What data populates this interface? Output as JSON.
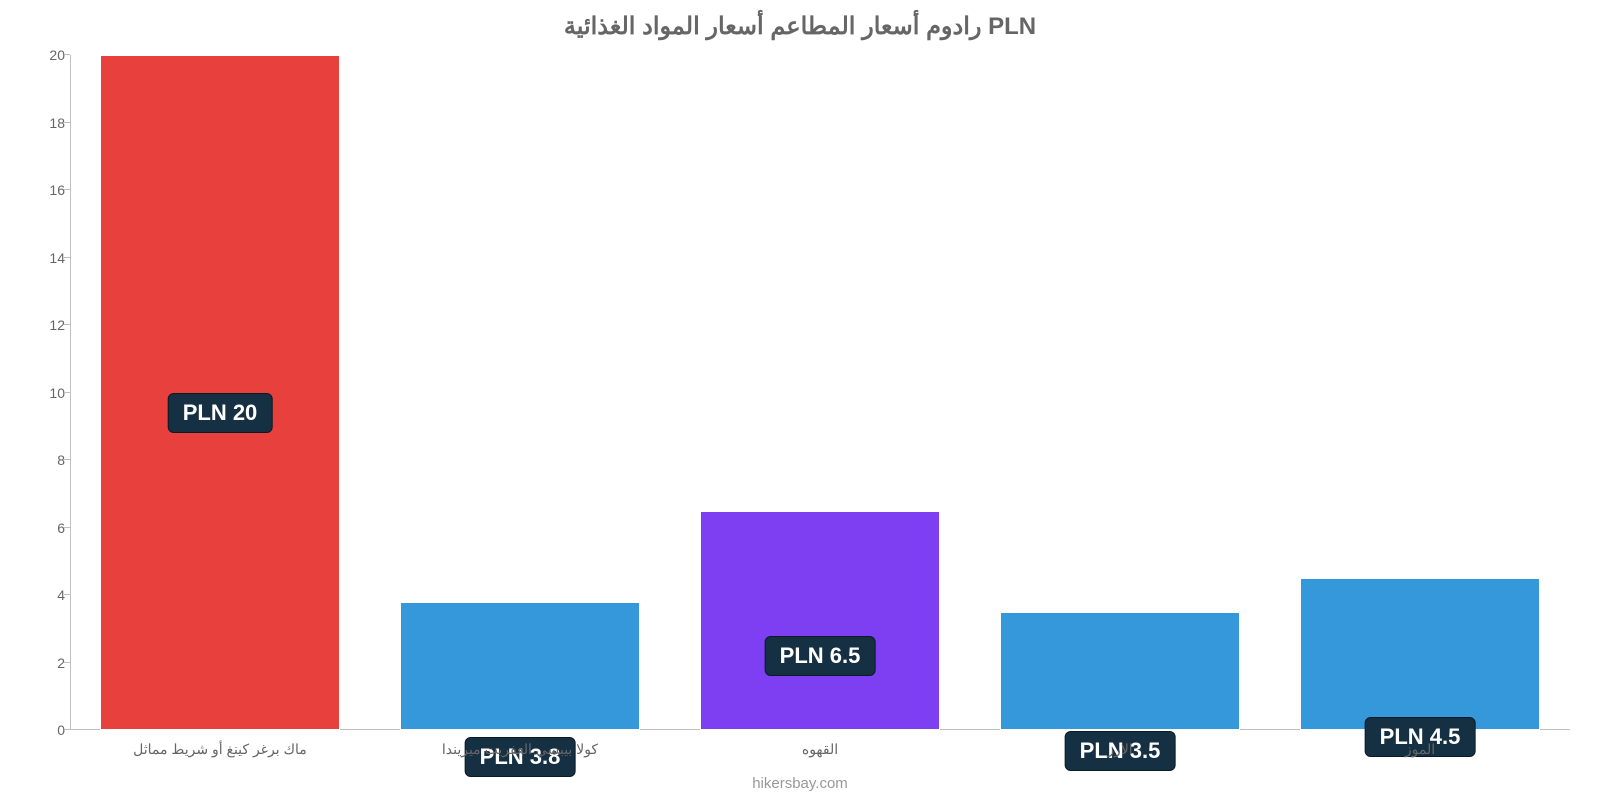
{
  "chart": {
    "type": "bar",
    "title": "رادوم أسعار المطاعم أسعار المواد الغذائية PLN",
    "source": "hikersbay.com",
    "background_color": "#ffffff",
    "title_color": "#666666",
    "axis_label_color": "#666666",
    "grid_color": "#c0c0c0",
    "ylim": [
      0,
      20
    ],
    "yticks": [
      0,
      2,
      4,
      6,
      8,
      10,
      12,
      14,
      16,
      18,
      20
    ],
    "label_box_bg": "#163043",
    "label_box_text": "#ffffff",
    "categories": [
      "ماك برغر كينغ أو شريط مماثل",
      "كولا بيبسي العفريت ميريندا",
      "القهوه",
      "الارز",
      "الموز"
    ],
    "values": [
      20,
      3.8,
      6.5,
      3.5,
      4.5
    ],
    "value_labels": [
      "PLN 20",
      "PLN 3.8",
      "PLN 6.5",
      "PLN 3.5",
      "PLN 4.5"
    ],
    "bar_colors": [
      "#e8403c",
      "#3498db",
      "#7e3ff2",
      "#3498db",
      "#3498db"
    ],
    "label_offsets_pct": [
      44,
      -7,
      8,
      -6,
      -4
    ],
    "bar_width": 0.8,
    "title_fontsize": 24,
    "tick_fontsize": 14,
    "value_fontsize": 22
  }
}
